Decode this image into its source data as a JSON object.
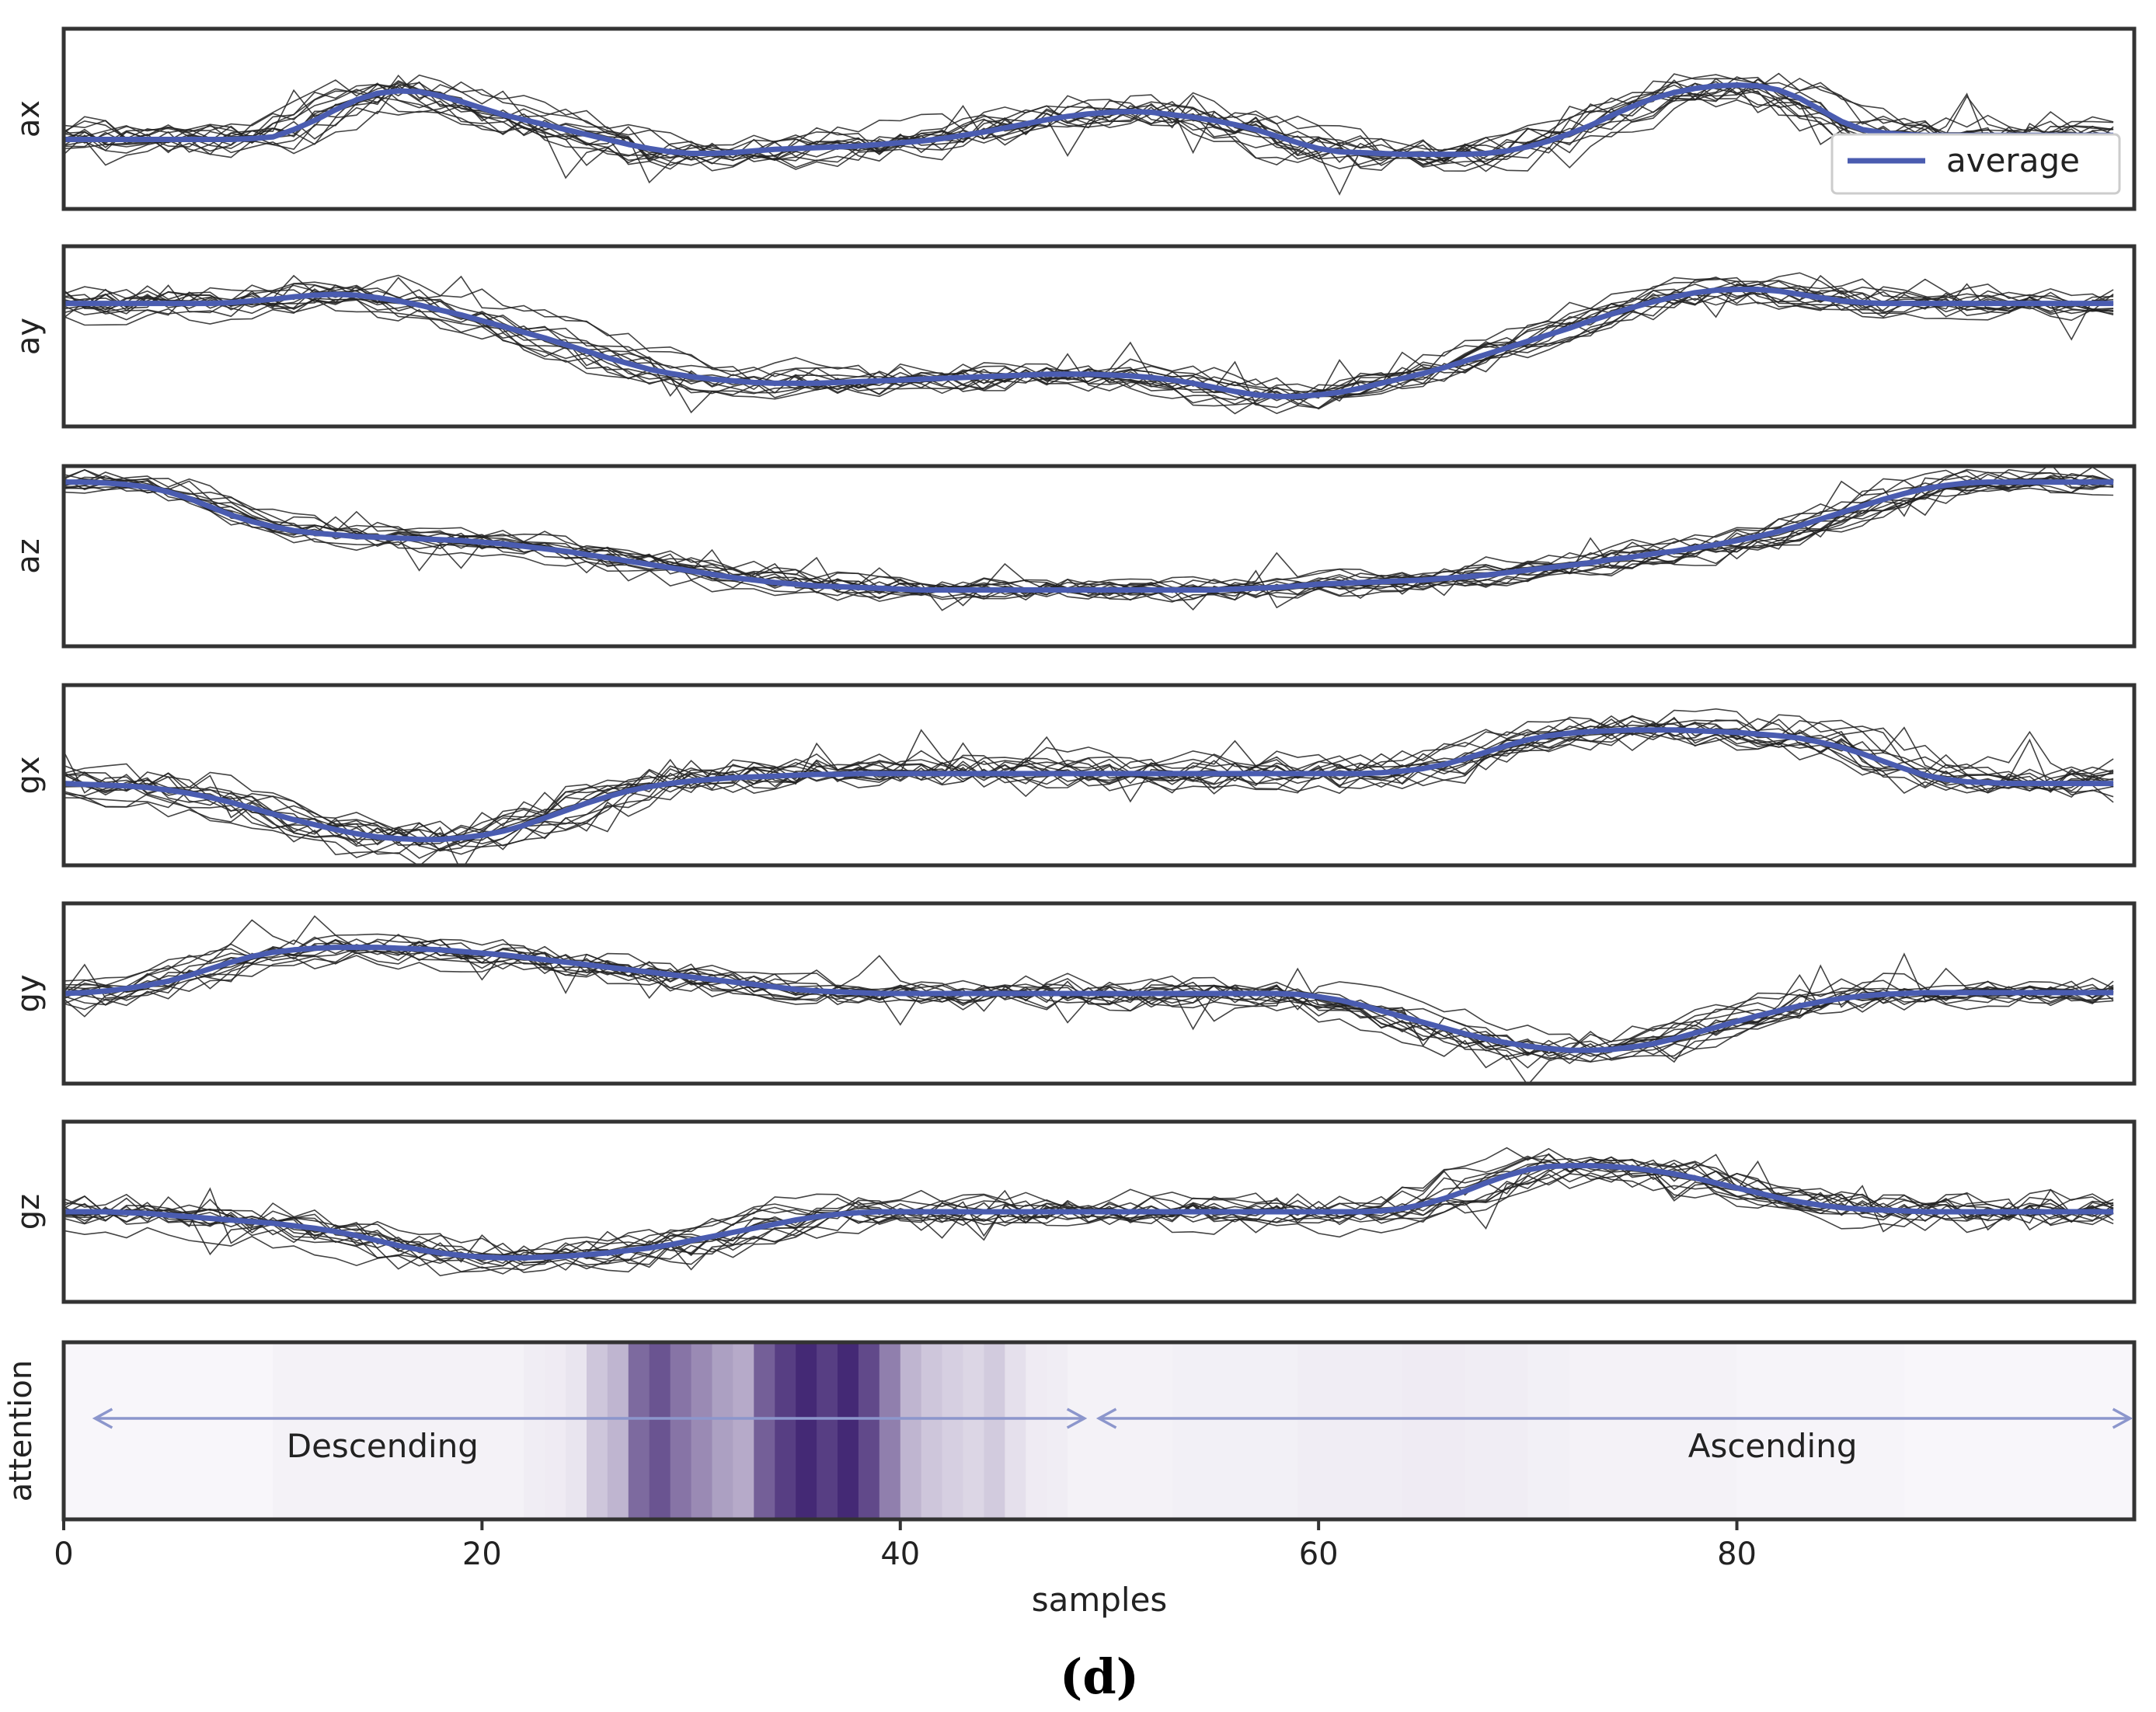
{
  "figure": {
    "caption": "(d)"
  },
  "chart_data": {
    "type": "line",
    "layout": "stacked-panels",
    "xlabel": "samples",
    "xlim": [
      0,
      99
    ],
    "xticks": [
      0,
      20,
      40,
      60,
      80
    ],
    "legend": {
      "label": "average",
      "placement": "top-right of ax panel"
    },
    "colors": {
      "average": "#4a5cb0",
      "raw": "#222222",
      "frame": "#333333",
      "attention_max": "#3b1e6e",
      "arrow": "#8c96cc"
    },
    "num_raw_traces": 14,
    "series": [
      {
        "name": "ax",
        "ylabel": "ax",
        "ylim": [
          -1,
          1
        ],
        "average": [
          -0.25,
          -0.25,
          -0.25,
          -0.25,
          -0.25,
          -0.25,
          -0.25,
          -0.25,
          -0.25,
          -0.24,
          -0.22,
          -0.13,
          -0.02,
          0.11,
          0.23,
          0.31,
          0.34,
          0.33,
          0.28,
          0.21,
          0.13,
          0.05,
          -0.01,
          -0.07,
          -0.13,
          -0.19,
          -0.25,
          -0.31,
          -0.36,
          -0.4,
          -0.42,
          -0.42,
          -0.41,
          -0.39,
          -0.37,
          -0.36,
          -0.35,
          -0.34,
          -0.33,
          -0.31,
          -0.29,
          -0.27,
          -0.24,
          -0.2,
          -0.16,
          -0.11,
          -0.06,
          -0.01,
          0.03,
          0.06,
          0.08,
          0.09,
          0.08,
          0.05,
          0.02,
          -0.02,
          -0.07,
          -0.13,
          -0.21,
          -0.29,
          -0.36,
          -0.4,
          -0.41,
          -0.42,
          -0.43,
          -0.43,
          -0.43,
          -0.43,
          -0.42,
          -0.39,
          -0.34,
          -0.27,
          -0.18,
          -0.08,
          0.04,
          0.15,
          0.25,
          0.32,
          0.37,
          0.4,
          0.41,
          0.4,
          0.35,
          0.25,
          0.11,
          -0.03,
          -0.13,
          -0.17,
          -0.19,
          -0.2,
          -0.2,
          -0.2,
          -0.2,
          -0.2,
          -0.2,
          -0.2,
          -0.2,
          -0.2,
          -0.2
        ],
        "spread": 0.3
      },
      {
        "name": "ay",
        "ylabel": "ay",
        "ylim": [
          -1,
          1
        ],
        "average": [
          0.4,
          0.4,
          0.4,
          0.4,
          0.4,
          0.4,
          0.4,
          0.4,
          0.41,
          0.43,
          0.45,
          0.48,
          0.5,
          0.51,
          0.5,
          0.47,
          0.43,
          0.38,
          0.32,
          0.26,
          0.19,
          0.12,
          0.05,
          -0.02,
          -0.1,
          -0.18,
          -0.26,
          -0.33,
          -0.4,
          -0.45,
          -0.49,
          -0.52,
          -0.54,
          -0.56,
          -0.57,
          -0.57,
          -0.57,
          -0.56,
          -0.55,
          -0.54,
          -0.53,
          -0.52,
          -0.51,
          -0.5,
          -0.49,
          -0.48,
          -0.47,
          -0.46,
          -0.46,
          -0.46,
          -0.47,
          -0.48,
          -0.5,
          -0.53,
          -0.57,
          -0.62,
          -0.67,
          -0.71,
          -0.73,
          -0.73,
          -0.71,
          -0.68,
          -0.63,
          -0.57,
          -0.51,
          -0.45,
          -0.38,
          -0.3,
          -0.22,
          -0.14,
          -0.06,
          0.02,
          0.1,
          0.19,
          0.27,
          0.35,
          0.42,
          0.48,
          0.53,
          0.56,
          0.57,
          0.57,
          0.55,
          0.51,
          0.47,
          0.43,
          0.41,
          0.4,
          0.4,
          0.4,
          0.4,
          0.4,
          0.4,
          0.4,
          0.4,
          0.4,
          0.4,
          0.4,
          0.4
        ],
        "spread": 0.25
      },
      {
        "name": "az",
        "ylabel": "az",
        "ylim": [
          -1,
          1
        ],
        "average": [
          0.9,
          0.9,
          0.89,
          0.87,
          0.84,
          0.78,
          0.7,
          0.6,
          0.5,
          0.42,
          0.36,
          0.31,
          0.28,
          0.26,
          0.24,
          0.23,
          0.22,
          0.21,
          0.2,
          0.19,
          0.17,
          0.15,
          0.12,
          0.09,
          0.06,
          0.02,
          -0.02,
          -0.06,
          -0.1,
          -0.14,
          -0.18,
          -0.22,
          -0.26,
          -0.29,
          -0.32,
          -0.34,
          -0.36,
          -0.37,
          -0.38,
          -0.39,
          -0.4,
          -0.41,
          -0.41,
          -0.41,
          -0.41,
          -0.41,
          -0.41,
          -0.41,
          -0.41,
          -0.41,
          -0.41,
          -0.41,
          -0.41,
          -0.41,
          -0.41,
          -0.41,
          -0.4,
          -0.39,
          -0.38,
          -0.36,
          -0.34,
          -0.33,
          -0.32,
          -0.31,
          -0.3,
          -0.29,
          -0.27,
          -0.25,
          -0.23,
          -0.2,
          -0.17,
          -0.14,
          -0.11,
          -0.08,
          -0.04,
          -0.01,
          0.03,
          0.06,
          0.1,
          0.14,
          0.19,
          0.24,
          0.3,
          0.37,
          0.45,
          0.53,
          0.61,
          0.69,
          0.76,
          0.82,
          0.86,
          0.89,
          0.9,
          0.9,
          0.9,
          0.9,
          0.9,
          0.9,
          0.9
        ],
        "spread": 0.2
      },
      {
        "name": "gx",
        "ylabel": "gx",
        "ylim": [
          -1,
          1
        ],
        "average": [
          -0.1,
          -0.11,
          -0.12,
          -0.13,
          -0.15,
          -0.18,
          -0.22,
          -0.27,
          -0.33,
          -0.4,
          -0.47,
          -0.54,
          -0.6,
          -0.66,
          -0.71,
          -0.75,
          -0.77,
          -0.78,
          -0.78,
          -0.76,
          -0.73,
          -0.68,
          -0.61,
          -0.52,
          -0.43,
          -0.34,
          -0.26,
          -0.19,
          -0.14,
          -0.1,
          -0.07,
          -0.05,
          -0.03,
          -0.02,
          -0.01,
          0.0,
          0.01,
          0.01,
          0.02,
          0.02,
          0.02,
          0.02,
          0.02,
          0.02,
          0.02,
          0.02,
          0.02,
          0.02,
          0.02,
          0.02,
          0.02,
          0.02,
          0.02,
          0.02,
          0.02,
          0.02,
          0.02,
          0.02,
          0.02,
          0.02,
          0.02,
          0.02,
          0.02,
          0.03,
          0.05,
          0.08,
          0.13,
          0.2,
          0.28,
          0.36,
          0.43,
          0.48,
          0.51,
          0.53,
          0.54,
          0.55,
          0.55,
          0.55,
          0.54,
          0.53,
          0.52,
          0.5,
          0.48,
          0.45,
          0.4,
          0.34,
          0.26,
          0.17,
          0.08,
          0.0,
          -0.05,
          -0.08,
          -0.09,
          -0.1,
          -0.1,
          -0.1,
          -0.1,
          -0.1,
          -0.1
        ],
        "spread": 0.3
      },
      {
        "name": "gy",
        "ylabel": "gy",
        "ylim": [
          -1,
          1
        ],
        "average": [
          0.0,
          0.01,
          0.03,
          0.06,
          0.1,
          0.15,
          0.22,
          0.3,
          0.38,
          0.45,
          0.5,
          0.53,
          0.55,
          0.56,
          0.56,
          0.56,
          0.55,
          0.54,
          0.53,
          0.51,
          0.49,
          0.47,
          0.44,
          0.41,
          0.38,
          0.35,
          0.32,
          0.29,
          0.26,
          0.23,
          0.2,
          0.17,
          0.14,
          0.11,
          0.08,
          0.05,
          0.03,
          0.02,
          0.01,
          0.0,
          0.0,
          0.0,
          0.0,
          0.0,
          0.0,
          0.0,
          0.0,
          0.0,
          0.0,
          0.0,
          0.0,
          0.0,
          0.0,
          0.0,
          0.0,
          0.0,
          0.0,
          0.0,
          0.0,
          -0.01,
          -0.04,
          -0.08,
          -0.14,
          -0.21,
          -0.28,
          -0.35,
          -0.42,
          -0.49,
          -0.55,
          -0.6,
          -0.64,
          -0.67,
          -0.69,
          -0.69,
          -0.68,
          -0.65,
          -0.61,
          -0.55,
          -0.48,
          -0.41,
          -0.34,
          -0.27,
          -0.21,
          -0.15,
          -0.1,
          -0.06,
          -0.03,
          -0.01,
          0.0,
          0.01,
          0.01,
          0.01,
          0.01,
          0.01,
          0.01,
          0.01,
          0.01,
          0.01,
          0.01
        ],
        "spread": 0.25
      },
      {
        "name": "gz",
        "ylabel": "gz",
        "ylim": [
          -1,
          1
        ],
        "average": [
          0.0,
          0.0,
          0.0,
          -0.01,
          -0.02,
          -0.04,
          -0.06,
          -0.08,
          -0.1,
          -0.12,
          -0.14,
          -0.17,
          -0.2,
          -0.24,
          -0.29,
          -0.35,
          -0.41,
          -0.46,
          -0.5,
          -0.53,
          -0.55,
          -0.56,
          -0.56,
          -0.55,
          -0.54,
          -0.52,
          -0.5,
          -0.47,
          -0.44,
          -0.4,
          -0.35,
          -0.3,
          -0.25,
          -0.2,
          -0.15,
          -0.1,
          -0.06,
          -0.03,
          -0.01,
          0.0,
          0.0,
          0.0,
          0.0,
          0.0,
          0.0,
          0.0,
          0.0,
          0.0,
          0.0,
          0.0,
          0.0,
          0.0,
          0.0,
          0.0,
          0.0,
          0.0,
          0.0,
          0.0,
          0.0,
          0.0,
          0.0,
          0.0,
          0.0,
          0.01,
          0.04,
          0.09,
          0.16,
          0.25,
          0.35,
          0.44,
          0.51,
          0.55,
          0.56,
          0.56,
          0.55,
          0.53,
          0.5,
          0.46,
          0.41,
          0.35,
          0.29,
          0.23,
          0.17,
          0.12,
          0.08,
          0.05,
          0.03,
          0.02,
          0.01,
          0.0,
          0.0,
          0.0,
          0.0,
          0.0,
          0.0,
          0.0,
          0.0,
          0.0,
          0.0
        ],
        "spread": 0.28
      }
    ],
    "attention": {
      "ylabel": "attention",
      "values": [
        0.0,
        0.0,
        0.0,
        0.0,
        0.0,
        0.0,
        0.0,
        0.0,
        0.0,
        0.0,
        0.02,
        0.02,
        0.02,
        0.02,
        0.02,
        0.02,
        0.02,
        0.02,
        0.02,
        0.02,
        0.02,
        0.02,
        0.04,
        0.05,
        0.08,
        0.22,
        0.3,
        0.65,
        0.75,
        0.6,
        0.5,
        0.4,
        0.35,
        0.7,
        0.85,
        0.95,
        0.85,
        0.95,
        0.8,
        0.55,
        0.3,
        0.22,
        0.18,
        0.15,
        0.2,
        0.1,
        0.05,
        0.04,
        0.02,
        0.02,
        0.02,
        0.02,
        0.02,
        0.03,
        0.03,
        0.03,
        0.03,
        0.03,
        0.03,
        0.04,
        0.04,
        0.04,
        0.04,
        0.04,
        0.05,
        0.05,
        0.05,
        0.04,
        0.04,
        0.04,
        0.03,
        0.03,
        0.02,
        0.02,
        0.02,
        0.02,
        0.02,
        0.02,
        0.02,
        0.02,
        0.01,
        0.01,
        0.01,
        0.01,
        0.01,
        0.01,
        0.01,
        0.01,
        0.0,
        0.0,
        0.0,
        0.0,
        0.0,
        0.0,
        0.0,
        0.0,
        0.0,
        0.0,
        0.0
      ],
      "annotations": [
        {
          "label": "Descending",
          "from": 1.5,
          "to": 48.8
        },
        {
          "label": "Ascending",
          "from": 49.5,
          "to": 98.8
        }
      ]
    }
  }
}
